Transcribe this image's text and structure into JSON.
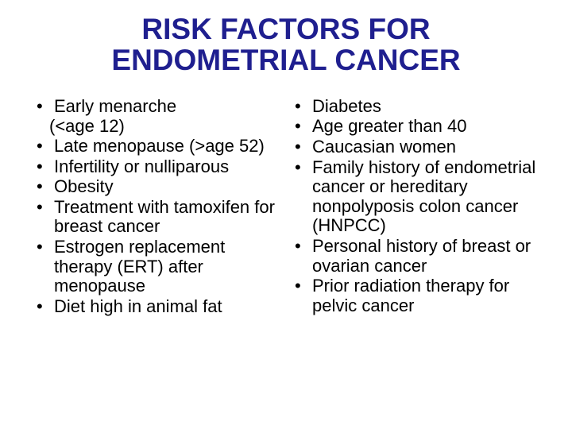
{
  "title_line1": "RISK FACTORS FOR",
  "title_line2": "ENDOMETRIAL CANCER",
  "title_color": "#1f1f8f",
  "title_fontsize": 37,
  "body_fontsize": 22,
  "bullet_char": "•",
  "left": {
    "items": [
      {
        "text": "Early menarche",
        "sub": "(<age 12)"
      },
      {
        "text": "Late menopause (>age 52)"
      },
      {
        "text": "Infertility or nulliparous"
      },
      {
        "text": "Obesity"
      },
      {
        "text": "Treatment with tamoxifen for breast cancer"
      },
      {
        "text": "Estrogen replacement therapy (ERT) after menopause"
      },
      {
        "text": "Diet high in animal fat"
      }
    ]
  },
  "right": {
    "items": [
      {
        "text": "Diabetes"
      },
      {
        "text": "Age greater than 40"
      },
      {
        "text": "Caucasian women"
      },
      {
        "text": "Family history of endometrial cancer or hereditary nonpolyposis colon cancer (HNPCC)"
      },
      {
        "text": "Personal history of breast or ovarian cancer"
      },
      {
        "text": "Prior radiation therapy for pelvic cancer"
      }
    ]
  }
}
